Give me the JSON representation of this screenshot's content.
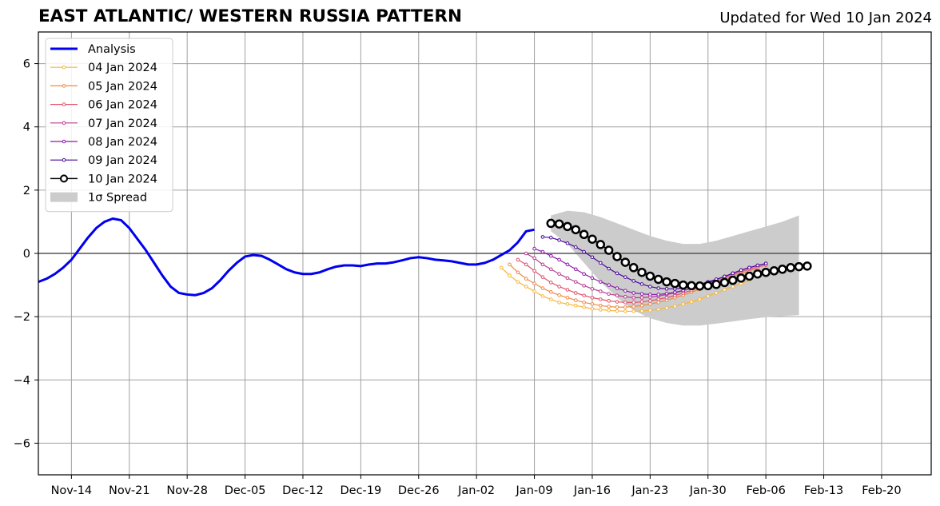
{
  "chart_data": {
    "type": "line",
    "title": "EAST ATLANTIC/ WESTERN RUSSIA PATTERN",
    "subtitle": "Updated for Wed 10 Jan 2024",
    "xlabel": "",
    "ylabel": "",
    "x_axis": {
      "type": "date",
      "range": [
        "2023-11-10",
        "2024-02-26"
      ],
      "ticks": [
        {
          "date": "2023-11-14",
          "label": "Nov-14"
        },
        {
          "date": "2023-11-21",
          "label": "Nov-21"
        },
        {
          "date": "2023-11-28",
          "label": "Nov-28"
        },
        {
          "date": "2023-12-05",
          "label": "Dec-05"
        },
        {
          "date": "2023-12-12",
          "label": "Dec-12"
        },
        {
          "date": "2023-12-19",
          "label": "Dec-19"
        },
        {
          "date": "2023-12-26",
          "label": "Dec-26"
        },
        {
          "date": "2024-01-02",
          "label": "Jan-02"
        },
        {
          "date": "2024-01-09",
          "label": "Jan-09"
        },
        {
          "date": "2024-01-16",
          "label": "Jan-16"
        },
        {
          "date": "2024-01-23",
          "label": "Jan-23"
        },
        {
          "date": "2024-01-30",
          "label": "Jan-30"
        },
        {
          "date": "2024-02-06",
          "label": "Feb-06"
        },
        {
          "date": "2024-02-13",
          "label": "Feb-13"
        },
        {
          "date": "2024-02-20",
          "label": "Feb-20"
        }
      ]
    },
    "y_axis": {
      "range": [
        -7,
        7
      ],
      "ticks": [
        {
          "value": 6,
          "label": "6"
        },
        {
          "value": 4,
          "label": "4"
        },
        {
          "value": 2,
          "label": "2"
        },
        {
          "value": 0,
          "label": "0"
        },
        {
          "value": -2,
          "label": "−2"
        },
        {
          "value": -4,
          "label": "−4"
        },
        {
          "value": -6,
          "label": "−6"
        }
      ]
    },
    "grid": true,
    "legend_position": "top-left",
    "series": [
      {
        "name": "Analysis",
        "color": "#0000ee",
        "style": "thick-line",
        "points": [
          [
            "2023-11-10",
            -0.9
          ],
          [
            "2023-11-11",
            -0.8
          ],
          [
            "2023-11-12",
            -0.65
          ],
          [
            "2023-11-13",
            -0.45
          ],
          [
            "2023-11-14",
            -0.2
          ],
          [
            "2023-11-15",
            0.15
          ],
          [
            "2023-11-16",
            0.5
          ],
          [
            "2023-11-17",
            0.8
          ],
          [
            "2023-11-18",
            1.0
          ],
          [
            "2023-11-19",
            1.1
          ],
          [
            "2023-11-20",
            1.05
          ],
          [
            "2023-11-21",
            0.8
          ],
          [
            "2023-11-22",
            0.45
          ],
          [
            "2023-11-23",
            0.1
          ],
          [
            "2023-11-24",
            -0.3
          ],
          [
            "2023-11-25",
            -0.7
          ],
          [
            "2023-11-26",
            -1.05
          ],
          [
            "2023-11-27",
            -1.25
          ],
          [
            "2023-11-28",
            -1.3
          ],
          [
            "2023-11-29",
            -1.32
          ],
          [
            "2023-11-30",
            -1.25
          ],
          [
            "2023-12-01",
            -1.1
          ],
          [
            "2023-12-02",
            -0.85
          ],
          [
            "2023-12-03",
            -0.55
          ],
          [
            "2023-12-04",
            -0.3
          ],
          [
            "2023-12-05",
            -0.1
          ],
          [
            "2023-12-06",
            -0.05
          ],
          [
            "2023-12-07",
            -0.08
          ],
          [
            "2023-12-08",
            -0.2
          ],
          [
            "2023-12-09",
            -0.35
          ],
          [
            "2023-12-10",
            -0.5
          ],
          [
            "2023-12-11",
            -0.6
          ],
          [
            "2023-12-12",
            -0.65
          ],
          [
            "2023-12-13",
            -0.65
          ],
          [
            "2023-12-14",
            -0.6
          ],
          [
            "2023-12-15",
            -0.5
          ],
          [
            "2023-12-16",
            -0.42
          ],
          [
            "2023-12-17",
            -0.38
          ],
          [
            "2023-12-18",
            -0.38
          ],
          [
            "2023-12-19",
            -0.4
          ],
          [
            "2023-12-20",
            -0.35
          ],
          [
            "2023-12-21",
            -0.32
          ],
          [
            "2023-12-22",
            -0.32
          ],
          [
            "2023-12-23",
            -0.28
          ],
          [
            "2023-12-24",
            -0.22
          ],
          [
            "2023-12-25",
            -0.15
          ],
          [
            "2023-12-26",
            -0.12
          ],
          [
            "2023-12-27",
            -0.15
          ],
          [
            "2023-12-28",
            -0.2
          ],
          [
            "2023-12-29",
            -0.22
          ],
          [
            "2023-12-30",
            -0.25
          ],
          [
            "2023-12-31",
            -0.3
          ],
          [
            "2024-01-01",
            -0.35
          ],
          [
            "2024-01-02",
            -0.35
          ],
          [
            "2024-01-03",
            -0.3
          ],
          [
            "2024-01-04",
            -0.2
          ],
          [
            "2024-01-05",
            -0.05
          ],
          [
            "2024-01-06",
            0.1
          ],
          [
            "2024-01-07",
            0.35
          ],
          [
            "2024-01-08",
            0.7
          ],
          [
            "2024-01-09",
            0.75
          ]
        ]
      },
      {
        "name": "04 Jan 2024",
        "color": "#f5b73a",
        "style": "dotted-markers",
        "start": "2024-01-05",
        "values": [
          -0.45,
          -0.7,
          -0.9,
          -1.05,
          -1.2,
          -1.35,
          -1.45,
          -1.55,
          -1.6,
          -1.65,
          -1.7,
          -1.75,
          -1.78,
          -1.8,
          -1.82,
          -1.83,
          -1.83,
          -1.82,
          -1.8,
          -1.77,
          -1.72,
          -1.67,
          -1.6,
          -1.53,
          -1.45,
          -1.35,
          -1.25,
          -1.15,
          -1.05,
          -0.95,
          -0.85
        ]
      },
      {
        "name": "05 Jan 2024",
        "color": "#ef8a43",
        "style": "dotted-markers",
        "start": "2024-01-06",
        "values": [
          -0.35,
          -0.6,
          -0.8,
          -0.95,
          -1.1,
          -1.22,
          -1.32,
          -1.4,
          -1.48,
          -1.55,
          -1.6,
          -1.65,
          -1.68,
          -1.7,
          -1.7,
          -1.68,
          -1.65,
          -1.6,
          -1.55,
          -1.48,
          -1.4,
          -1.32,
          -1.23,
          -1.13,
          -1.03,
          -0.93,
          -0.83,
          -0.73,
          -0.63,
          -0.55,
          -0.48
        ]
      },
      {
        "name": "06 Jan 2024",
        "color": "#e1536b",
        "style": "dotted-markers",
        "start": "2024-01-07",
        "values": [
          -0.2,
          -0.35,
          -0.55,
          -0.75,
          -0.92,
          -1.05,
          -1.15,
          -1.25,
          -1.33,
          -1.4,
          -1.45,
          -1.5,
          -1.53,
          -1.55,
          -1.55,
          -1.53,
          -1.5,
          -1.45,
          -1.4,
          -1.33,
          -1.25,
          -1.17,
          -1.08,
          -0.98,
          -0.88,
          -0.78,
          -0.68,
          -0.58,
          -0.5,
          -0.43,
          -0.37
        ]
      },
      {
        "name": "07 Jan 2024",
        "color": "#b83d91",
        "style": "dotted-markers",
        "start": "2024-01-08",
        "values": [
          0.0,
          -0.15,
          -0.35,
          -0.5,
          -0.65,
          -0.78,
          -0.9,
          -1.02,
          -1.12,
          -1.2,
          -1.28,
          -1.33,
          -1.37,
          -1.4,
          -1.4,
          -1.38,
          -1.35,
          -1.3,
          -1.25,
          -1.18,
          -1.1,
          -1.02,
          -0.93,
          -0.83,
          -0.73,
          -0.63,
          -0.53,
          -0.45,
          -0.38,
          -0.32
        ]
      },
      {
        "name": "08 Jan 2024",
        "color": "#8a1aa8",
        "style": "dotted-markers",
        "start": "2024-01-09",
        "values": [
          0.15,
          0.05,
          -0.08,
          -0.2,
          -0.35,
          -0.5,
          -0.65,
          -0.78,
          -0.9,
          -1.0,
          -1.1,
          -1.18,
          -1.25,
          -1.28,
          -1.3,
          -1.3,
          -1.27,
          -1.23,
          -1.17,
          -1.1,
          -1.02,
          -0.93,
          -0.83,
          -0.73,
          -0.63,
          -0.53,
          -0.45,
          -0.38,
          -0.32
        ]
      },
      {
        "name": "09 Jan 2024",
        "color": "#4a0a9a",
        "style": "dotted-markers",
        "start": "2024-01-10",
        "values": [
          0.52,
          0.5,
          0.42,
          0.32,
          0.2,
          0.05,
          -0.12,
          -0.3,
          -0.48,
          -0.63,
          -0.75,
          -0.87,
          -0.97,
          -1.05,
          -1.1,
          -1.12,
          -1.12,
          -1.1,
          -1.05,
          -0.98,
          -0.9,
          -0.82,
          -0.73,
          -0.63,
          -0.53,
          -0.45,
          -0.38,
          -0.32
        ]
      },
      {
        "name": "10 Jan 2024",
        "color": "#000000",
        "style": "circle-markers",
        "start": "2024-01-11",
        "values": [
          0.95,
          0.93,
          0.85,
          0.75,
          0.6,
          0.45,
          0.28,
          0.1,
          -0.1,
          -0.28,
          -0.45,
          -0.6,
          -0.72,
          -0.82,
          -0.9,
          -0.95,
          -1.0,
          -1.02,
          -1.03,
          -1.02,
          -0.98,
          -0.92,
          -0.85,
          -0.78,
          -0.72,
          -0.65,
          -0.6,
          -0.55,
          -0.5,
          -0.45,
          -0.42,
          -0.4
        ]
      }
    ],
    "spread": {
      "name": "1σ Spread",
      "color": "#cccccc",
      "dates": [
        "2024-01-11",
        "2024-01-13",
        "2024-01-15",
        "2024-01-17",
        "2024-01-19",
        "2024-01-21",
        "2024-01-23",
        "2024-01-25",
        "2024-01-27",
        "2024-01-29",
        "2024-01-31",
        "2024-02-02",
        "2024-02-04",
        "2024-02-06",
        "2024-02-08",
        "2024-02-10"
      ],
      "upper": [
        1.2,
        1.35,
        1.3,
        1.15,
        0.95,
        0.75,
        0.55,
        0.4,
        0.3,
        0.3,
        0.4,
        0.55,
        0.7,
        0.85,
        1.0,
        1.2
      ],
      "lower": [
        0.7,
        0.3,
        -0.3,
        -0.9,
        -1.4,
        -1.8,
        -2.05,
        -2.2,
        -2.28,
        -2.28,
        -2.22,
        -2.15,
        -2.08,
        -2.02,
        -1.98,
        -1.95
      ]
    }
  }
}
